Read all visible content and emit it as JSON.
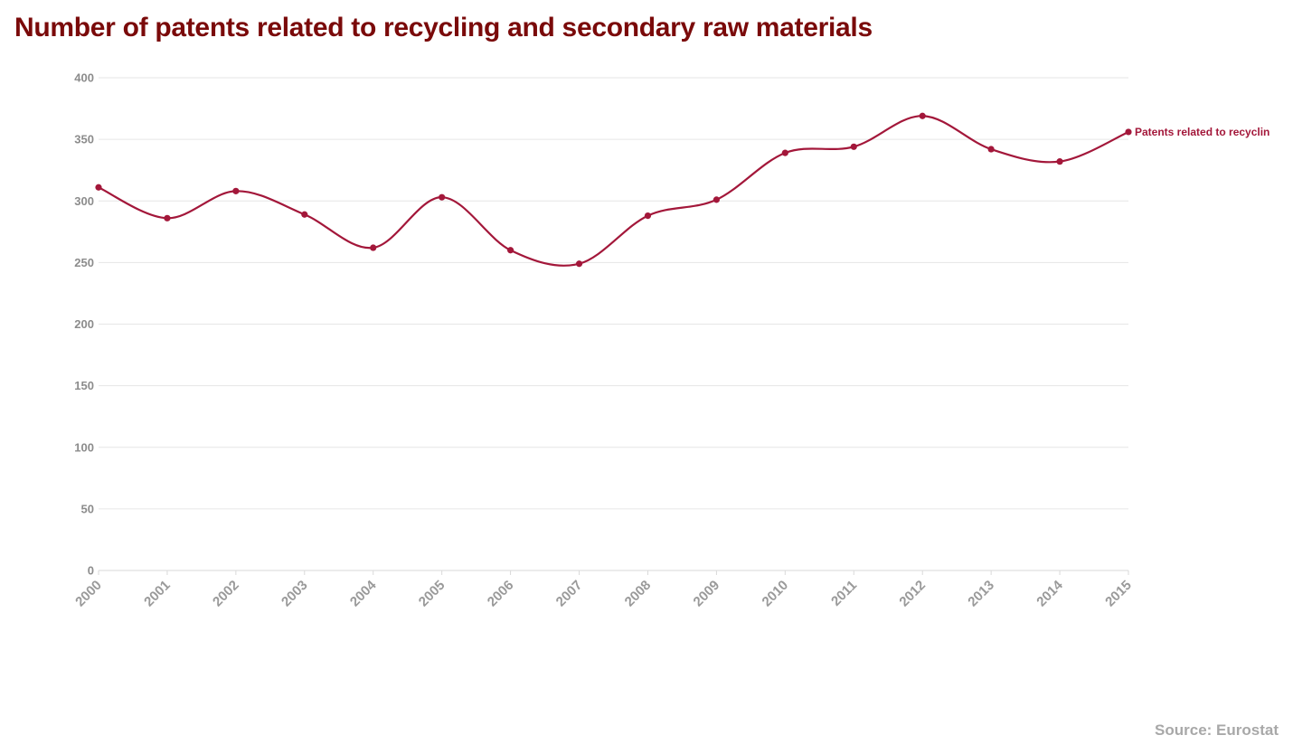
{
  "header": {
    "title": "Number of patents related to recycling and secondary raw materials"
  },
  "footer": {
    "source": "Source: Eurostat"
  },
  "colors": {
    "title": "#7a0a0a",
    "series": "#a3173a",
    "grid": "#e6e6e6",
    "tick_text": "#8c8c8c",
    "source_text": "#a8a8a8"
  },
  "chart_data": {
    "type": "line",
    "title": "Number of patents related to recycling and secondary raw materials",
    "xlabel": "",
    "ylabel": "",
    "ylim": [
      0,
      400
    ],
    "yticks": [
      0,
      50,
      100,
      150,
      200,
      250,
      300,
      350,
      400
    ],
    "grid": true,
    "smooth": true,
    "x": [
      "2000",
      "2001",
      "2002",
      "2003",
      "2004",
      "2005",
      "2006",
      "2007",
      "2008",
      "2009",
      "2010",
      "2011",
      "2012",
      "2013",
      "2014",
      "2015"
    ],
    "series": [
      {
        "name": "Patents related to recyclin",
        "values": [
          311,
          286,
          308,
          289,
          262,
          303,
          260,
          249,
          288,
          301,
          339,
          344,
          369,
          342,
          332,
          356
        ]
      }
    ],
    "series_label_placement": "end-of-line",
    "source": "Source: Eurostat"
  }
}
